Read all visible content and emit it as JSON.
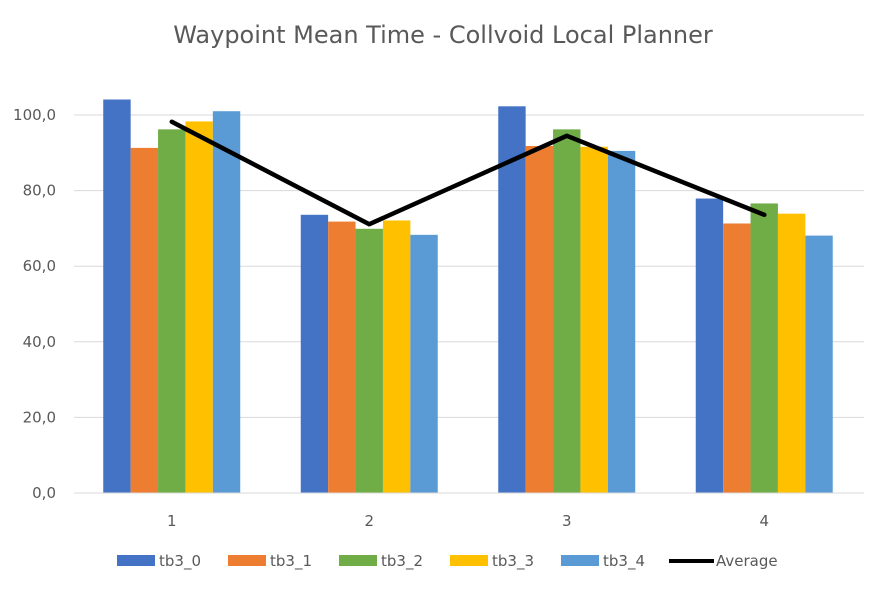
{
  "chart_data": {
    "type": "bar",
    "title": "Waypoint Mean Time - Collvoid Local Planner",
    "xlabel": "",
    "ylabel": "",
    "categories": [
      "1",
      "2",
      "3",
      "4"
    ],
    "ylim": [
      0,
      100
    ],
    "yticks": [
      "0,0",
      "20,0",
      "40,0",
      "60,0",
      "80,0",
      "100,0"
    ],
    "grid": true,
    "legend_position": "bottom",
    "series": [
      {
        "name": "tb3_0",
        "color": "#4472C4",
        "values": [
          104.1,
          73.6,
          102.3,
          77.9
        ]
      },
      {
        "name": "tb3_1",
        "color": "#ED7D31",
        "values": [
          91.3,
          71.8,
          91.8,
          71.3
        ]
      },
      {
        "name": "tb3_2",
        "color": "#70AD47",
        "values": [
          96.2,
          69.9,
          96.2,
          76.6
        ]
      },
      {
        "name": "tb3_3",
        "color": "#FFC000",
        "values": [
          98.3,
          72.1,
          91.6,
          73.9
        ]
      },
      {
        "name": "tb3_4",
        "color": "#5B9BD5",
        "values": [
          101.0,
          68.3,
          90.5,
          68.1
        ]
      }
    ],
    "line_series": {
      "name": "Average",
      "color": "#000000",
      "values": [
        98.2,
        71.1,
        94.5,
        73.6
      ]
    }
  }
}
